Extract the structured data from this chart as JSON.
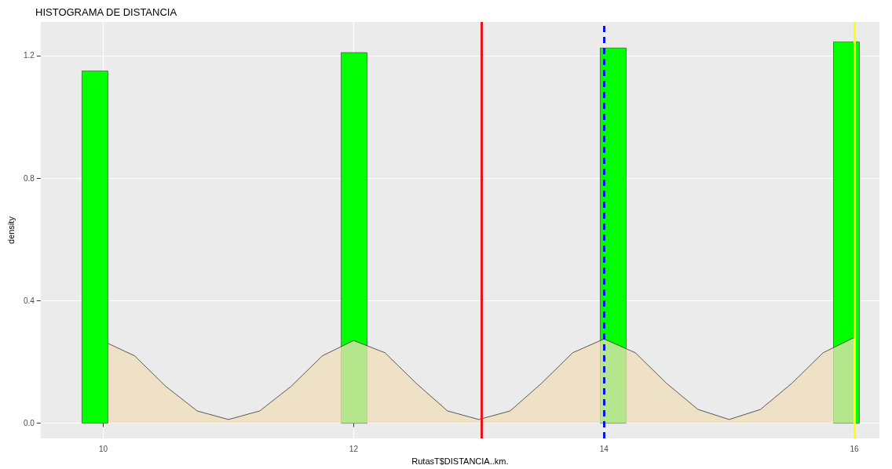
{
  "chart_data": {
    "type": "histogram",
    "title": "HISTOGRAMA DE DISTANCIA",
    "xlabel": "RutasT$DISTANCIA..km.",
    "ylabel": "density",
    "bins": [
      9.83,
      10.037,
      10.244,
      10.451,
      10.658,
      10.865,
      11.072,
      11.279,
      11.486,
      11.693,
      11.9,
      12.107,
      12.314,
      12.521,
      12.728,
      12.935,
      13.142,
      13.349,
      13.556,
      13.763,
      13.97,
      14.177,
      14.384,
      14.591,
      14.798,
      15.005,
      15.212,
      15.419,
      15.626,
      15.833,
      16.04
    ],
    "values": [
      1.15,
      0,
      0,
      0,
      0,
      0,
      0,
      0,
      0,
      0,
      1.21,
      0,
      0,
      0,
      0,
      0,
      0,
      0,
      0,
      0,
      1.225,
      0,
      0,
      0,
      0,
      0,
      0,
      0,
      0,
      1.245
    ],
    "color": "#00ff00",
    "series": [
      {
        "type": "area",
        "color": "#f0deb9",
        "x": [
          10.04,
          10.25,
          10.5,
          10.75,
          11,
          11.25,
          11.5,
          11.75,
          12,
          12.25,
          12.5,
          12.75,
          13,
          13.25,
          13.5,
          13.75,
          14,
          14.25,
          14.5,
          14.75,
          15,
          15.25,
          15.5,
          15.75,
          16
        ],
        "values": [
          0.26,
          0.22,
          0.12,
          0.04,
          0.012,
          0.04,
          0.12,
          0.22,
          0.27,
          0.23,
          0.13,
          0.04,
          0.012,
          0.04,
          0.13,
          0.23,
          0.275,
          0.23,
          0.13,
          0.045,
          0.012,
          0.045,
          0.13,
          0.23,
          0.28
        ]
      }
    ],
    "ref_lines": [
      {
        "axis": "x",
        "value": 13.02,
        "color": "#e8141c",
        "line_style": "solid"
      },
      {
        "axis": "x",
        "value": 14,
        "color": "#0a14e6",
        "line_style": "dashed"
      },
      {
        "axis": "x",
        "value": 16,
        "color": "#ffff00",
        "line_style": "solid"
      }
    ],
    "xlim": [
      9.5,
      16.2
    ],
    "xticks": [
      10,
      12,
      14,
      16
    ],
    "ylim": [
      -0.05,
      1.31
    ],
    "yticks": [
      {
        "value": 0,
        "label": "0.0"
      },
      {
        "value": 0.4,
        "label": "0.4"
      },
      {
        "value": 0.8,
        "label": "0.8"
      },
      {
        "value": 1.2,
        "label": "1.2"
      }
    ],
    "grid": true
  }
}
